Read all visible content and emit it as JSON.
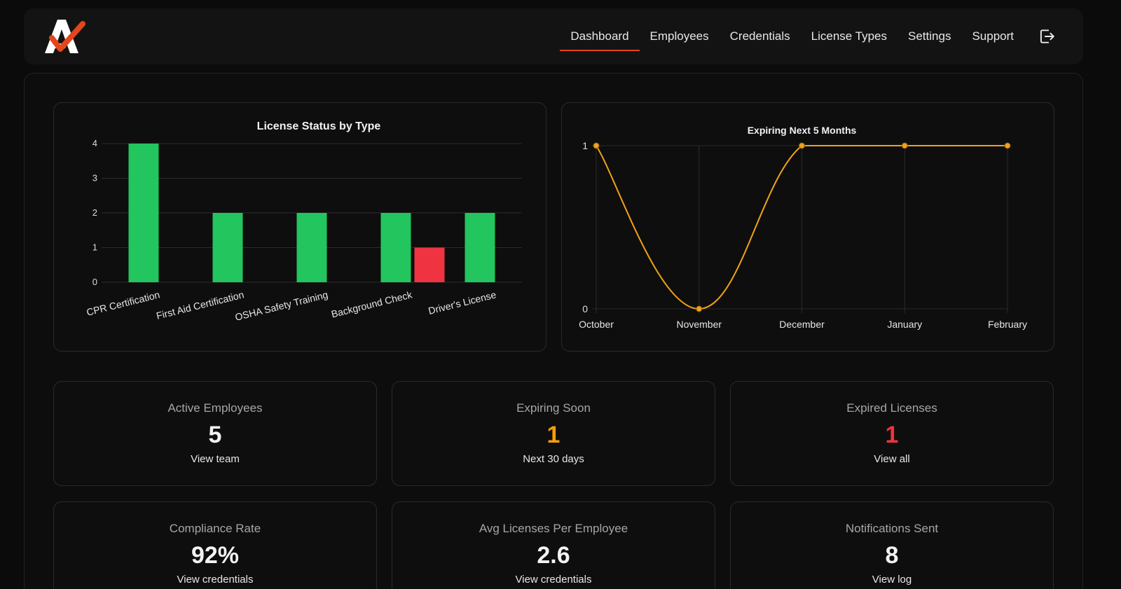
{
  "nav": {
    "items": [
      "Dashboard",
      "Employees",
      "Credentials",
      "License Types",
      "Settings",
      "Support"
    ],
    "active": "Dashboard"
  },
  "colors": {
    "accent": "#e2461b",
    "valid": "#22c55e",
    "expired": "#ef3340",
    "warning": "#f59e0b"
  },
  "chart_data": [
    {
      "type": "bar",
      "title": "License Status by Type",
      "categories": [
        "CPR Certification",
        "First Aid Certification",
        "OSHA Safety Training",
        "Background Check",
        "Driver's License"
      ],
      "series": [
        {
          "values": [
            4,
            2,
            2,
            2,
            2
          ],
          "color": "#22c55e"
        },
        {
          "values": [
            0,
            0,
            0,
            1,
            0
          ],
          "color": "#ef3340"
        }
      ],
      "ylim": [
        0,
        4
      ],
      "yticks": [
        0,
        1,
        2,
        3,
        4
      ],
      "grid": true,
      "legend": "none"
    },
    {
      "type": "line",
      "title": "Expiring Next 5 Months",
      "categories": [
        "October",
        "November",
        "December",
        "January",
        "February"
      ],
      "series": [
        {
          "values": [
            1,
            0,
            1,
            1,
            1
          ],
          "color": "#f0a21a"
        }
      ],
      "ylim": [
        0,
        1
      ],
      "yticks": [
        0,
        1
      ],
      "grid": true,
      "legend": "none"
    }
  ],
  "stats": [
    {
      "label": "Active Employees",
      "value": "5",
      "link": "View team",
      "color": "#f2f2f2"
    },
    {
      "label": "Expiring Soon",
      "value": "1",
      "link": "Next 30 days",
      "color": "#f59e0b"
    },
    {
      "label": "Expired Licenses",
      "value": "1",
      "link": "View all",
      "color": "#ef3340"
    },
    {
      "label": "Compliance Rate",
      "value": "92%",
      "link": "View credentials",
      "color": "#f2f2f2"
    },
    {
      "label": "Avg Licenses Per Employee",
      "value": "2.6",
      "link": "View credentials",
      "color": "#f2f2f2"
    },
    {
      "label": "Notifications Sent",
      "value": "8",
      "link": "View log",
      "color": "#f2f2f2"
    }
  ]
}
